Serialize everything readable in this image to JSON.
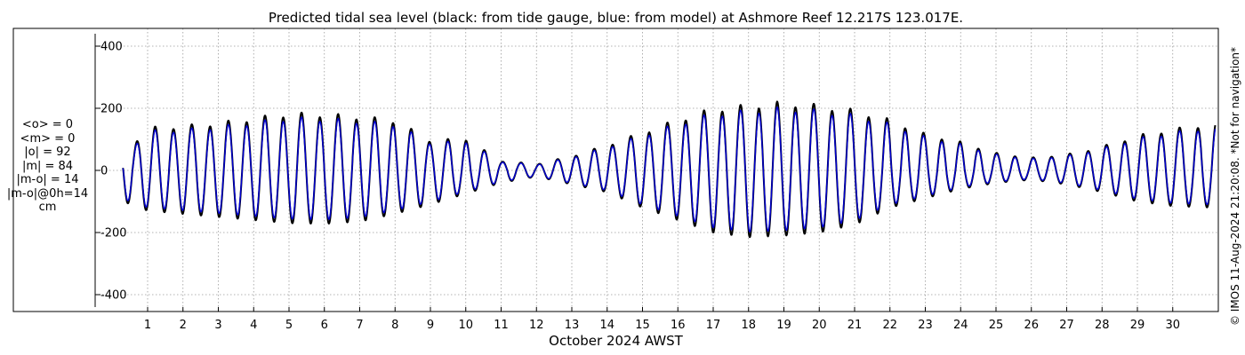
{
  "chart_data": {
    "type": "line",
    "title": "Predicted tidal sea level (black: from tide gauge, blue: from model) at Ashmore Reef 12.217S 123.017E.",
    "xlabel": "October 2024 AWST",
    "ylabel": "",
    "x_ticks": [
      "1",
      "2",
      "3",
      "4",
      "5",
      "6",
      "7",
      "8",
      "9",
      "10",
      "11",
      "12",
      "13",
      "14",
      "15",
      "16",
      "17",
      "18",
      "19",
      "20",
      "21",
      "22",
      "23",
      "24",
      "25",
      "26",
      "27",
      "28",
      "29",
      "30"
    ],
    "xlim": [
      0.3,
      31.2
    ],
    "ylim": [
      -440,
      440
    ],
    "y_ticks": [
      -400,
      -200,
      0,
      200,
      400
    ],
    "grid": true,
    "series": [
      {
        "name": "black: from tide gauge",
        "color": "#000000",
        "role": "gauge"
      },
      {
        "name": "blue: from model",
        "color": "#0000cc",
        "role": "model"
      }
    ],
    "envelope_day": [
      0.3,
      1,
      2,
      3,
      4,
      5,
      6,
      7,
      8,
      9,
      10,
      11,
      12,
      13,
      14,
      15,
      16,
      17,
      18,
      19,
      20,
      21,
      22,
      23,
      24,
      25,
      26,
      27,
      28,
      29,
      30,
      31.2
    ],
    "envelope_high": [
      50,
      135,
      140,
      150,
      165,
      180,
      178,
      170,
      158,
      95,
      100,
      30,
      20,
      45,
      80,
      120,
      160,
      195,
      205,
      215,
      205,
      190,
      160,
      115,
      90,
      55,
      40,
      50,
      75,
      110,
      130,
      150
    ],
    "envelope_low": [
      -100,
      -130,
      -140,
      -150,
      -160,
      -170,
      -172,
      -165,
      -140,
      -110,
      -75,
      -40,
      -20,
      -45,
      -70,
      -120,
      -160,
      -200,
      -215,
      -210,
      -200,
      -175,
      -120,
      -90,
      -60,
      -40,
      -30,
      -45,
      -70,
      -100,
      -115,
      -120
    ]
  },
  "stats": {
    "mean_o": "<o> = 0",
    "mean_m": "<m> = 0",
    "abs_o": "|o| = 92",
    "abs_m": "|m| = 84",
    "abs_diff": "|m-o| = 14",
    "abs_diff_0h": "|m-o|@0h=14",
    "unit": "cm"
  },
  "credit": "© IMOS 11-Aug-2024 21:20:08. *Not for navigation*"
}
